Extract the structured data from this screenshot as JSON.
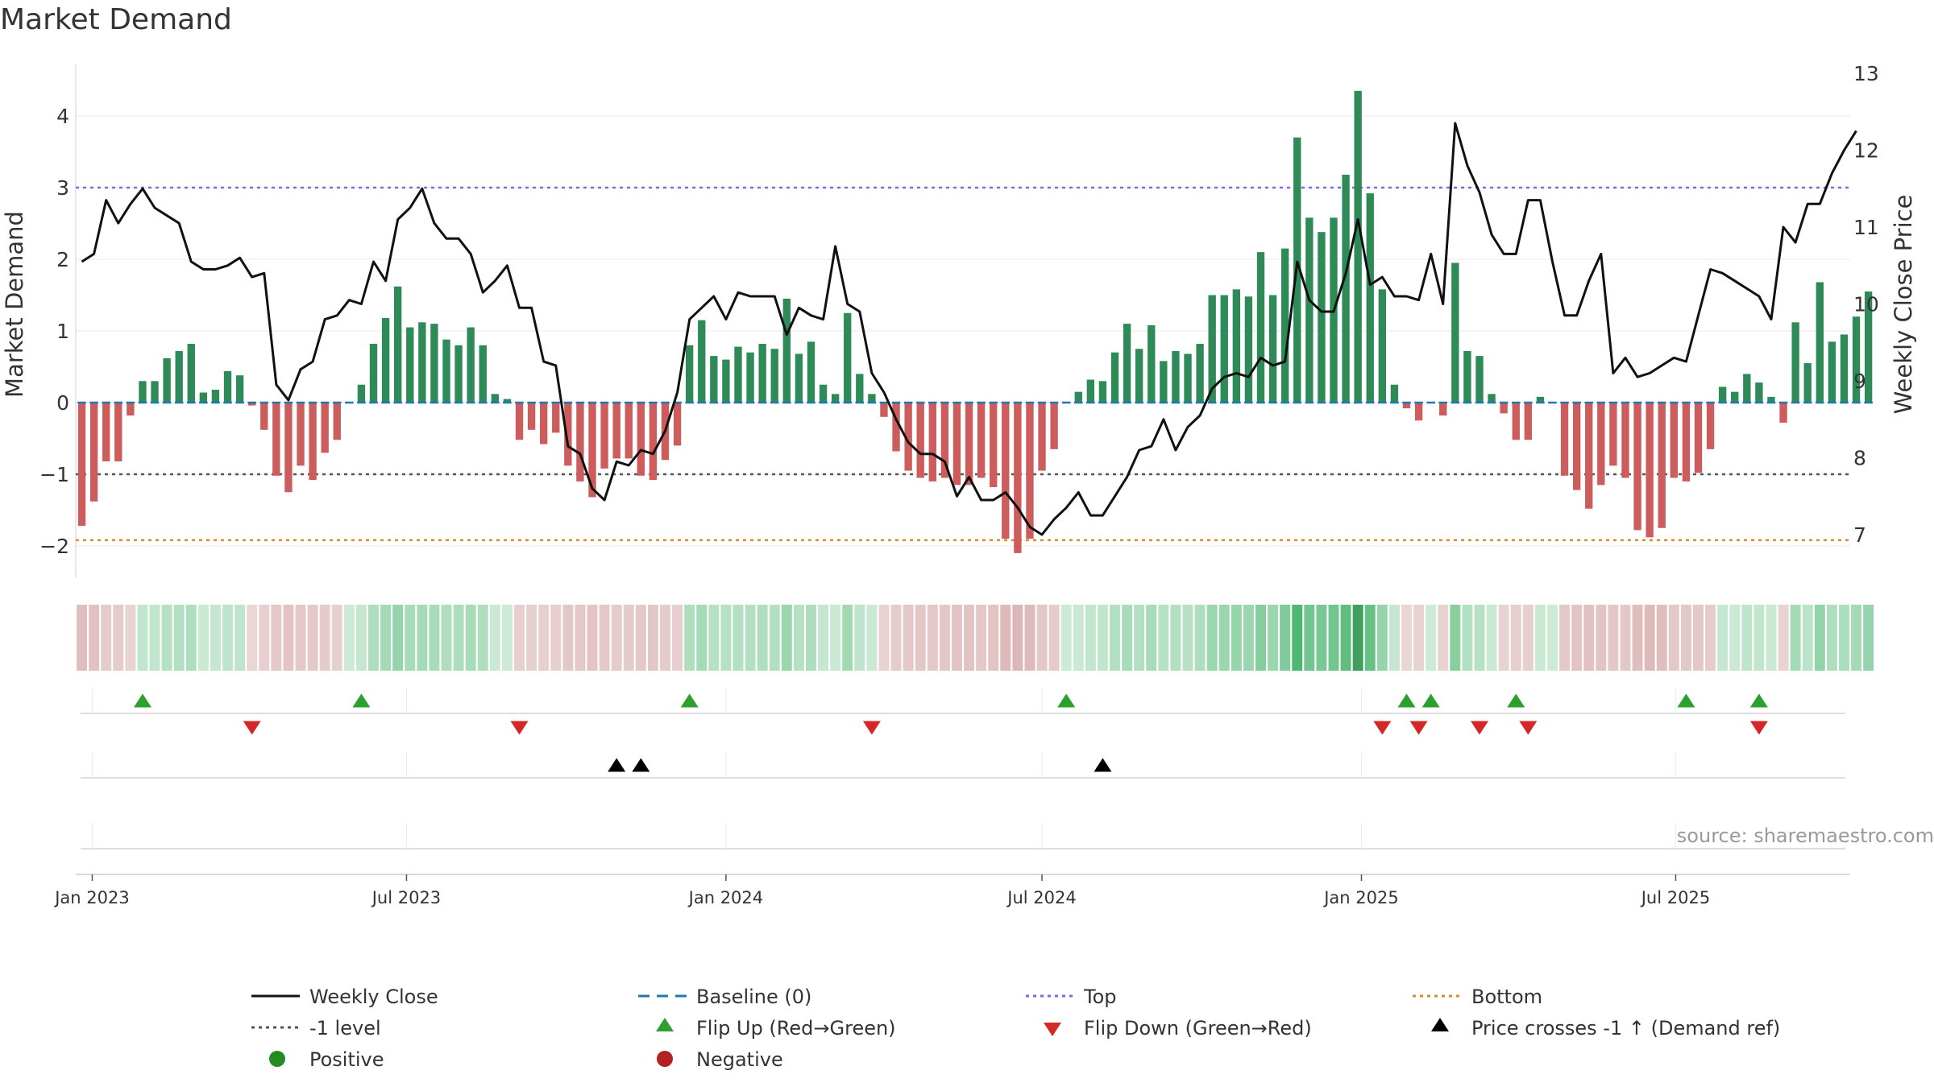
{
  "title": "Market Demand",
  "source": "source: sharemaestro.com",
  "colors": {
    "positive": "#2e8b57",
    "negative": "#cd5c5c",
    "price": "#111111",
    "top": "#7b68ee",
    "bottom": "#e08a1e",
    "level": "#555555",
    "baseline": "#1f77b4",
    "flip_up": "#2ca02c",
    "flip_down": "#d62728",
    "cross": "#000000",
    "legend_positive": "#228b22",
    "legend_negative": "#b22222"
  },
  "chart_data": {
    "type": "bar",
    "title": "Market Demand",
    "ylabel": "Market Demand",
    "y2label": "Weekly Close Price",
    "ylim": [
      -2.45,
      4.6
    ],
    "y2lim": [
      6.6,
      13.1
    ],
    "yticks": [
      "-2",
      "-1",
      "0",
      "1",
      "2",
      "3",
      "4"
    ],
    "y2ticks": [
      "7",
      "8",
      "9",
      "10",
      "11",
      "12",
      "13"
    ],
    "xticks": [
      "Jan 2023",
      "Jul 2023",
      "Jan 2024",
      "Jul 2024",
      "Jan 2025",
      "Jul 2025"
    ],
    "top_level": 3.0,
    "minus_one_level": -1.0,
    "bottom_level": -1.92,
    "start_date": "2022-12-26",
    "weeks": 146,
    "demand": [
      -1.72,
      -1.38,
      -0.82,
      -0.82,
      -0.18,
      0.3,
      0.3,
      0.62,
      0.72,
      0.82,
      0.14,
      0.18,
      0.44,
      0.38,
      -0.04,
      -0.38,
      -1.02,
      -1.25,
      -0.88,
      -1.08,
      -0.7,
      -0.52,
      0.0,
      0.25,
      0.82,
      1.18,
      1.62,
      1.05,
      1.12,
      1.1,
      0.88,
      0.8,
      1.05,
      0.8,
      0.12,
      0.05,
      -0.52,
      -0.38,
      -0.58,
      -0.42,
      -0.88,
      -1.1,
      -1.32,
      -0.92,
      -0.78,
      -0.78,
      -1.02,
      -1.08,
      -0.8,
      -0.6,
      0.8,
      1.15,
      0.65,
      0.6,
      0.78,
      0.7,
      0.82,
      0.75,
      1.45,
      0.68,
      0.85,
      0.25,
      0.12,
      1.25,
      0.4,
      0.12,
      -0.2,
      -0.68,
      -0.95,
      -1.05,
      -1.1,
      -1.05,
      -1.15,
      -1.15,
      -1.05,
      -1.18,
      -1.9,
      -2.1,
      -1.9,
      -0.95,
      -0.65,
      0.0,
      0.15,
      0.32,
      0.3,
      0.7,
      1.1,
      0.75,
      1.08,
      0.58,
      0.72,
      0.68,
      0.82,
      1.5,
      1.5,
      1.58,
      1.48,
      2.1,
      1.5,
      2.15,
      3.7,
      2.58,
      2.38,
      2.58,
      3.18,
      4.35,
      2.92,
      1.58,
      0.25,
      -0.08,
      -0.25,
      0.0,
      -0.18,
      1.95,
      0.72,
      0.65,
      0.12,
      -0.15,
      -0.52,
      -0.52,
      0.08,
      0.0,
      -1.02,
      -1.22,
      -1.48,
      -1.15,
      -0.88,
      -1.05,
      -1.78,
      -1.88,
      -1.75,
      -1.05,
      -1.1,
      -0.98,
      -0.65,
      0.22,
      0.15,
      0.4,
      0.28,
      0.08,
      -0.28,
      1.12,
      0.55,
      1.68,
      0.85,
      0.95,
      1.2,
      1.55
    ],
    "weekly_close": [
      10.55,
      10.65,
      11.35,
      11.05,
      11.3,
      11.5,
      11.25,
      11.15,
      11.05,
      10.55,
      10.45,
      10.45,
      10.5,
      10.6,
      10.35,
      10.4,
      8.95,
      8.75,
      9.15,
      9.25,
      9.8,
      9.85,
      10.05,
      10.0,
      10.55,
      10.3,
      11.1,
      11.25,
      11.5,
      11.05,
      10.85,
      10.85,
      10.65,
      10.15,
      10.3,
      10.5,
      9.95,
      9.95,
      9.25,
      9.2,
      8.15,
      8.05,
      7.6,
      7.45,
      7.95,
      7.9,
      8.1,
      8.05,
      8.35,
      8.85,
      9.8,
      9.95,
      10.1,
      9.8,
      10.15,
      10.1,
      10.1,
      10.1,
      9.6,
      9.95,
      9.85,
      9.8,
      10.75,
      10.0,
      9.9,
      9.1,
      8.85,
      8.5,
      8.2,
      8.05,
      8.05,
      7.95,
      7.5,
      7.75,
      7.45,
      7.45,
      7.55,
      7.35,
      7.1,
      7.0,
      7.2,
      7.35,
      7.55,
      7.25,
      7.25,
      7.5,
      7.75,
      8.1,
      8.15,
      8.5,
      8.1,
      8.4,
      8.55,
      8.9,
      9.05,
      9.1,
      9.05,
      9.3,
      9.2,
      9.25,
      10.55,
      10.05,
      9.9,
      9.9,
      10.4,
      11.1,
      10.25,
      10.35,
      10.1,
      10.1,
      10.05,
      10.65,
      10.0,
      12.35,
      11.8,
      11.45,
      10.9,
      10.65,
      10.65,
      11.35,
      11.35,
      10.55,
      9.85,
      9.85,
      10.3,
      10.65,
      9.1,
      9.3,
      9.05,
      9.1,
      9.2,
      9.3,
      9.25,
      9.85,
      10.45,
      10.4,
      10.3,
      10.2,
      10.1,
      9.8,
      11.0,
      10.8,
      11.3,
      11.3,
      11.7,
      12.0,
      12.25
    ],
    "flip_up_weeks": [
      5,
      23,
      50,
      81,
      109,
      111,
      118,
      132,
      138
    ],
    "flip_down_weeks": [
      14,
      36,
      65,
      107,
      110,
      115,
      119,
      138
    ],
    "price_cross_weeks": [
      44,
      46,
      84
    ]
  },
  "legend": {
    "weekly_close": "Weekly Close",
    "baseline": "Baseline (0)",
    "top": "Top",
    "bottom": "Bottom",
    "minus_one": "-1 level",
    "flip_up": "Flip Up (Red→Green)",
    "flip_down": "Flip Down (Green→Red)",
    "price_cross": "Price crosses -1 ↑ (Demand ref)",
    "positive": "Positive",
    "negative": "Negative"
  }
}
